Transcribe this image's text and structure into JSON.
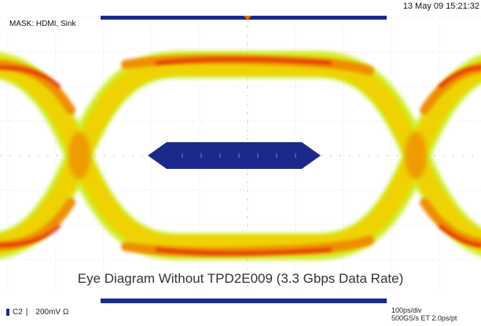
{
  "scope": {
    "timestamp": "13 May 09 15:21:32",
    "mask_label": "MASK: HDMI, Sink",
    "caption": "Eye Diagram Without TPD2E009 (3.3 Gbps Data Rate)",
    "channel": {
      "name": "C2",
      "scale": "200mV Ω"
    },
    "timebase": {
      "horizontal": "100ps/div",
      "sampling": "500GS/s ET 2.0ps/pt"
    }
  },
  "colors": {
    "mask": "#1b2a8a",
    "grid": "#d8d8d8",
    "trace_outer": "#c8e800",
    "trace_mid": "#f2d000",
    "trace_inner": "#f08a00",
    "trace_core": "#e02000",
    "trigger": "#e07000"
  },
  "icons": {
    "trigger_marker": "trigger-marker-icon"
  }
}
